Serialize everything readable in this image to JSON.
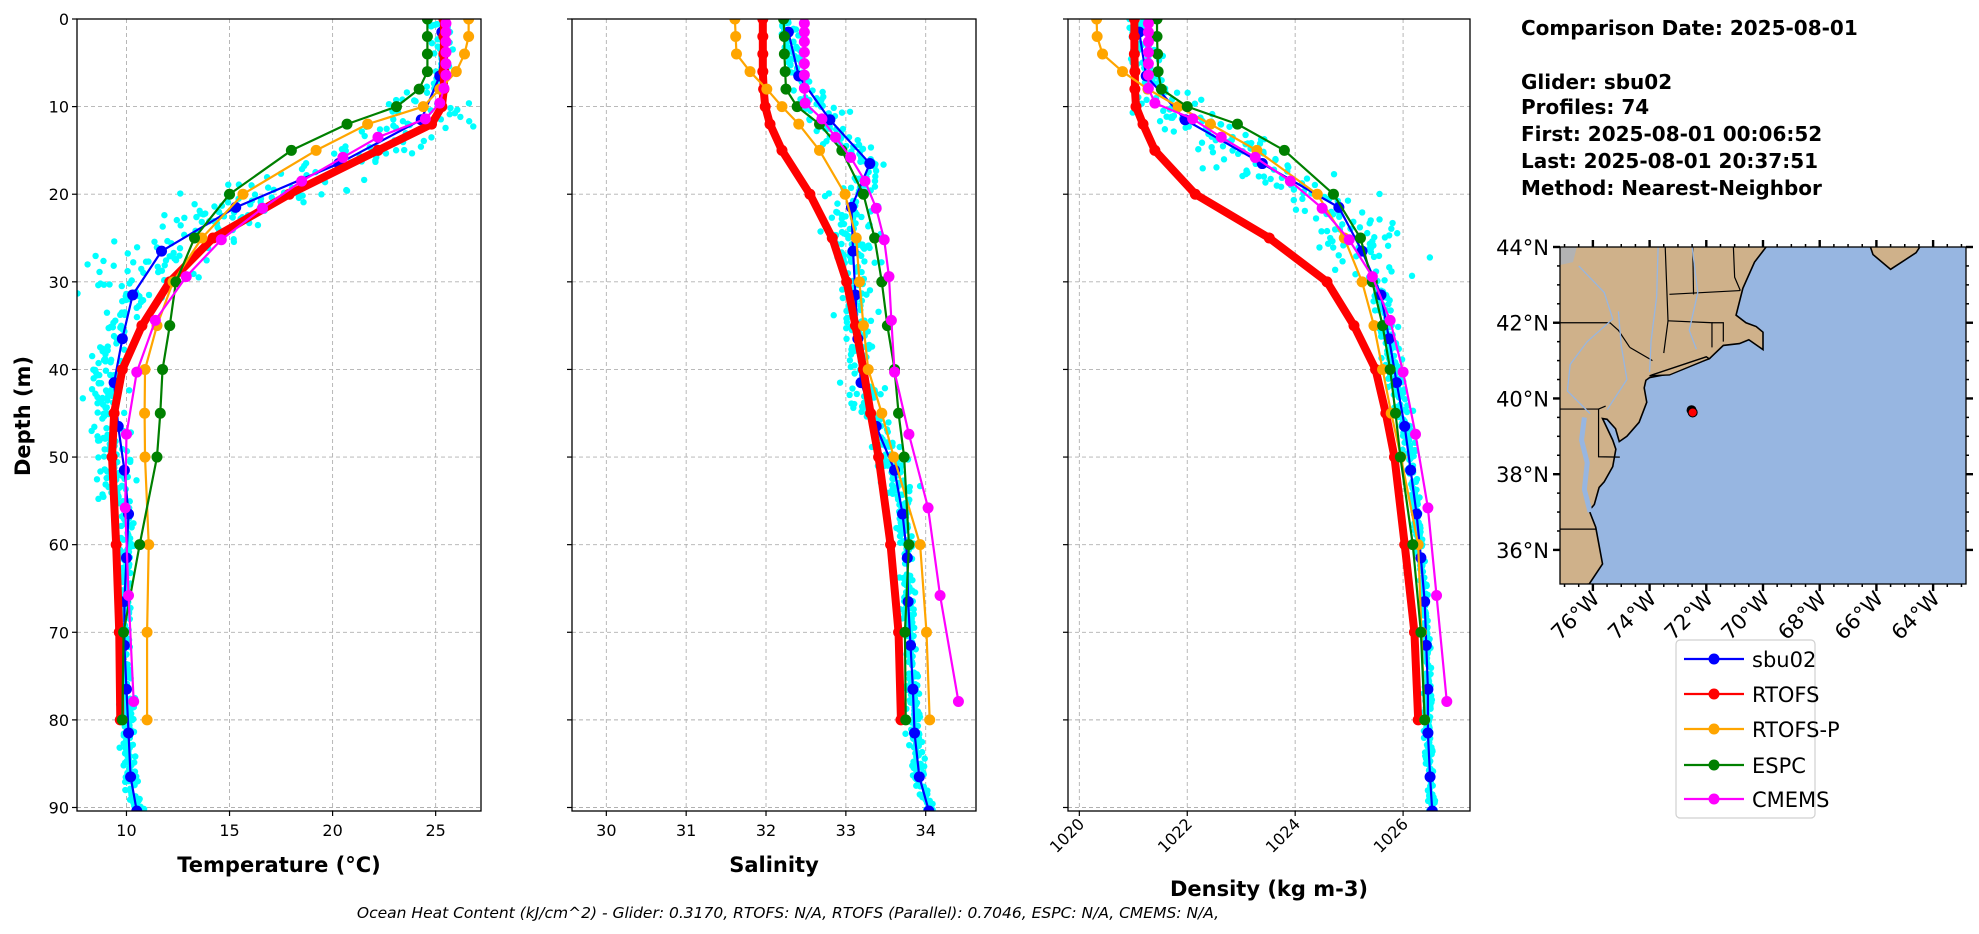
{
  "info": {
    "comparison_date": "Comparison Date: 2025-08-01",
    "glider": "Glider: sbu02",
    "profiles": "Profiles: 74",
    "first": "First: 2025-08-01 00:06:52",
    "last": "Last: 2025-08-01 20:37:51",
    "method": "Method: Nearest-Neighbor"
  },
  "footer": "Ocean Heat Content (kJ/cm^2) - Glider: 0.3170,  RTOFS: N/A,  RTOFS (Parallel): 0.7046,  ESPC: N/A,  CMEMS: N/A,",
  "legend": [
    {
      "name": "sbu02",
      "color": "#0000ff"
    },
    {
      "name": "RTOFS",
      "color": "#ff0000"
    },
    {
      "name": "RTOFS-P",
      "color": "#ffa500"
    },
    {
      "name": "ESPC",
      "color": "#008000"
    },
    {
      "name": "CMEMS",
      "color": "#ff00ff"
    }
  ],
  "scatter_color": "#00ffff",
  "chart_data": [
    {
      "type": "line",
      "xlabel": "Temperature (°C)",
      "ylabel": "Depth (m)",
      "xlim": [
        7.6,
        27.2
      ],
      "ylim": [
        90.4,
        0
      ],
      "xticks": [
        "10",
        "15",
        "20",
        "25"
      ],
      "yticks": [
        "0",
        "10",
        "20",
        "30",
        "40",
        "50",
        "60",
        "70",
        "80",
        "90"
      ],
      "grid": true,
      "series": [
        {
          "name": "sbu02",
          "depth": [
            1.5,
            6.5,
            11.5,
            16.5,
            21.5,
            26.5,
            31.5,
            36.5,
            41.5,
            46.5,
            51.5,
            56.5,
            61.5,
            66.5,
            71.5,
            76.5,
            81.5,
            86.5,
            90.4
          ],
          "values": [
            25.3,
            25.2,
            24.3,
            20.3,
            15.3,
            11.7,
            10.3,
            9.8,
            9.4,
            9.6,
            9.9,
            10.1,
            10.0,
            9.9,
            9.9,
            10.0,
            10.1,
            10.2,
            10.5
          ]
        },
        {
          "name": "RTOFS",
          "depth": [
            0,
            2,
            4,
            6,
            8,
            10,
            12,
            15,
            20,
            25,
            30,
            35,
            40,
            45,
            50,
            60,
            70,
            80
          ],
          "values": [
            25.4,
            25.4,
            25.4,
            25.4,
            25.4,
            25.3,
            24.8,
            22.2,
            17.9,
            14.2,
            12.1,
            10.75,
            9.8,
            9.4,
            9.3,
            9.5,
            9.65,
            9.7
          ]
        },
        {
          "name": "RTOFS-P",
          "depth": [
            0,
            2,
            4,
            6,
            8,
            10,
            12,
            15,
            20,
            25,
            30,
            35,
            40,
            45,
            50,
            60,
            70,
            80
          ],
          "values": [
            26.6,
            26.6,
            26.4,
            26.0,
            25.2,
            24.4,
            21.7,
            19.2,
            15.65,
            13.66,
            12.26,
            11.48,
            10.9,
            10.88,
            10.9,
            11.08,
            11.0,
            11.0
          ]
        },
        {
          "name": "ESPC",
          "depth": [
            0,
            2,
            4,
            6,
            8,
            10,
            12,
            15,
            20,
            25,
            30,
            35,
            40,
            45,
            50,
            60,
            70,
            80
          ],
          "values": [
            24.6,
            24.6,
            24.6,
            24.6,
            24.2,
            23.1,
            20.7,
            18.0,
            15.0,
            13.3,
            12.4,
            12.1,
            11.75,
            11.64,
            11.48,
            10.64,
            9.86,
            9.8
          ]
        },
        {
          "name": "CMEMS",
          "depth": [
            0.5,
            1.5,
            2.6,
            3.8,
            5.1,
            6.4,
            7.9,
            9.6,
            11.4,
            13.5,
            15.8,
            18.5,
            21.6,
            25.2,
            29.4,
            34.4,
            40.3,
            47.4,
            55.8,
            65.8,
            77.9
          ],
          "values": [
            25.5,
            25.5,
            25.5,
            25.5,
            25.5,
            25.5,
            25.4,
            25.2,
            24.5,
            22.2,
            20.5,
            18.5,
            16.6,
            14.6,
            12.9,
            11.4,
            10.5,
            10.0,
            9.94,
            10.1,
            10.35
          ]
        }
      ]
    },
    {
      "type": "line",
      "xlabel": "Salinity",
      "ylabel": "",
      "xlim": [
        29.57,
        34.63
      ],
      "ylim": [
        90.4,
        0
      ],
      "xticks": [
        "30",
        "31",
        "32",
        "33",
        "34"
      ],
      "grid": true,
      "series": [
        {
          "name": "sbu02",
          "depth": [
            1.5,
            6.5,
            11.5,
            16.5,
            21.5,
            26.5,
            31.5,
            36.5,
            41.5,
            46.5,
            51.5,
            56.5,
            61.5,
            66.5,
            71.5,
            76.5,
            81.5,
            86.5,
            90.4
          ],
          "values": [
            32.28,
            32.41,
            32.8,
            33.3,
            33.07,
            33.09,
            33.12,
            33.15,
            33.19,
            33.38,
            33.61,
            33.71,
            33.77,
            33.78,
            33.81,
            33.84,
            33.86,
            33.92,
            34.04
          ]
        },
        {
          "name": "RTOFS",
          "depth": [
            0,
            2,
            4,
            6,
            8,
            10,
            12,
            15,
            20,
            25,
            30,
            35,
            40,
            45,
            50,
            60,
            70,
            80
          ],
          "values": [
            31.96,
            31.96,
            31.96,
            31.96,
            31.97,
            31.99,
            32.05,
            32.2,
            32.55,
            32.83,
            33.01,
            33.12,
            33.22,
            33.31,
            33.41,
            33.56,
            33.66,
            33.69
          ]
        },
        {
          "name": "RTOFS-P",
          "depth": [
            0,
            2,
            4,
            6,
            8,
            10,
            12,
            15,
            20,
            25,
            30,
            35,
            40,
            45,
            50,
            60,
            70,
            80
          ],
          "values": [
            31.61,
            31.62,
            31.63,
            31.8,
            32.01,
            32.2,
            32.41,
            32.67,
            32.99,
            33.13,
            33.17,
            33.22,
            33.28,
            33.45,
            33.6,
            33.93,
            34.01,
            34.05
          ]
        },
        {
          "name": "ESPC",
          "depth": [
            0,
            2,
            4,
            6,
            8,
            10,
            12,
            15,
            20,
            25,
            30,
            35,
            40,
            45,
            50,
            60,
            70,
            80
          ],
          "values": [
            32.22,
            32.23,
            32.23,
            32.24,
            32.25,
            32.39,
            32.67,
            32.95,
            33.22,
            33.36,
            33.45,
            33.52,
            33.61,
            33.66,
            33.73,
            33.79,
            33.74,
            33.75
          ]
        },
        {
          "name": "CMEMS",
          "depth": [
            0.5,
            1.5,
            2.6,
            3.8,
            5.1,
            6.4,
            7.9,
            9.6,
            11.4,
            13.5,
            15.8,
            18.5,
            21.6,
            25.2,
            29.4,
            34.4,
            40.3,
            47.4,
            55.8,
            65.8,
            77.9
          ],
          "values": [
            32.48,
            32.48,
            32.48,
            32.48,
            32.48,
            32.48,
            32.48,
            32.49,
            32.7,
            32.87,
            33.06,
            33.24,
            33.38,
            33.48,
            33.54,
            33.57,
            33.61,
            33.79,
            34.03,
            34.18,
            34.41
          ]
        }
      ]
    },
    {
      "type": "line",
      "xlabel": "Density (kg m-3)",
      "ylabel": "",
      "xlim": [
        1019.79,
        1027.24
      ],
      "ylim": [
        90.4,
        0
      ],
      "xticks": [
        "1020",
        "1022",
        "1024",
        "1026"
      ],
      "grid": true,
      "series": [
        {
          "name": "sbu02",
          "depth": [
            1.5,
            6.5,
            11.5,
            16.5,
            21.5,
            26.5,
            31.5,
            36.5,
            41.5,
            46.5,
            51.5,
            56.5,
            61.5,
            66.5,
            71.5,
            76.5,
            81.5,
            86.5,
            90.4
          ],
          "values": [
            1021.11,
            1021.24,
            1021.96,
            1023.39,
            1024.81,
            1025.24,
            1025.59,
            1025.74,
            1025.88,
            1026.03,
            1026.14,
            1026.25,
            1026.33,
            1026.4,
            1026.43,
            1026.46,
            1026.46,
            1026.5,
            1026.54
          ]
        },
        {
          "name": "RTOFS",
          "depth": [
            0,
            2,
            4,
            6,
            8,
            10,
            12,
            15,
            20,
            25,
            30,
            35,
            40,
            45,
            50,
            60,
            70,
            80
          ],
          "values": [
            1021.02,
            1021.02,
            1021.02,
            1021.03,
            1021.03,
            1021.05,
            1021.18,
            1021.4,
            1022.15,
            1023.52,
            1024.59,
            1025.09,
            1025.49,
            1025.68,
            1025.84,
            1026.03,
            1026.21,
            1026.28
          ]
        },
        {
          "name": "RTOFS-P",
          "depth": [
            0,
            2,
            4,
            6,
            8,
            10,
            12,
            15,
            20,
            25,
            30,
            35,
            40,
            45,
            50,
            60,
            70,
            80
          ],
          "values": [
            1020.32,
            1020.33,
            1020.43,
            1020.8,
            1021.27,
            1021.83,
            1022.43,
            1023.29,
            1024.41,
            1024.91,
            1025.24,
            1025.46,
            1025.62,
            1025.78,
            1025.96,
            1026.28,
            1026.34,
            1026.4
          ]
        },
        {
          "name": "ESPC",
          "depth": [
            0,
            2,
            4,
            6,
            8,
            10,
            12,
            15,
            20,
            25,
            30,
            35,
            40,
            45,
            50,
            60,
            70,
            80
          ],
          "values": [
            1021.44,
            1021.44,
            1021.45,
            1021.46,
            1021.52,
            1022.0,
            1022.93,
            1023.8,
            1024.71,
            1025.21,
            1025.43,
            1025.62,
            1025.76,
            1025.86,
            1025.95,
            1026.18,
            1026.33,
            1026.4
          ]
        },
        {
          "name": "CMEMS",
          "depth": [
            0.5,
            1.5,
            2.6,
            3.8,
            5.1,
            6.4,
            7.9,
            9.6,
            11.4,
            13.5,
            15.8,
            18.5,
            21.6,
            25.2,
            29.4,
            34.4,
            40.3,
            47.4,
            55.8,
            65.8,
            77.9
          ],
          "values": [
            1021.28,
            1021.28,
            1021.28,
            1021.28,
            1021.28,
            1021.28,
            1021.28,
            1021.4,
            1022.1,
            1022.63,
            1023.26,
            1023.91,
            1024.5,
            1025.0,
            1025.43,
            1025.76,
            1026.0,
            1026.23,
            1026.46,
            1026.62,
            1026.81
          ]
        }
      ]
    },
    {
      "type": "map",
      "lon_range": [
        -77.16,
        -62.84
      ],
      "lat_range": [
        35.1,
        44.0
      ],
      "lat_ticks": [
        {
          "value": 36,
          "label": "36°N"
        },
        {
          "value": 38,
          "label": "38°N"
        },
        {
          "value": 40,
          "label": "40°N"
        },
        {
          "value": 42,
          "label": "42°N"
        },
        {
          "value": 44,
          "label": "44°N"
        }
      ],
      "lon_ticks": [
        {
          "value": -76,
          "label": "76°W"
        },
        {
          "value": -74,
          "label": "74°W"
        },
        {
          "value": -72,
          "label": "72°W"
        },
        {
          "value": -70,
          "label": "70°W"
        },
        {
          "value": -68,
          "label": "68°W"
        },
        {
          "value": -66,
          "label": "66°W"
        },
        {
          "value": -64,
          "label": "64°W"
        }
      ],
      "ocean_color": "#97b6e1",
      "land_color": "#cfb18a",
      "glider_track": [
        {
          "lon": -72.52,
          "lat": 39.69,
          "color": "#000000"
        },
        {
          "lon": -72.48,
          "lat": 39.63,
          "color": "#ff0000"
        }
      ]
    }
  ]
}
